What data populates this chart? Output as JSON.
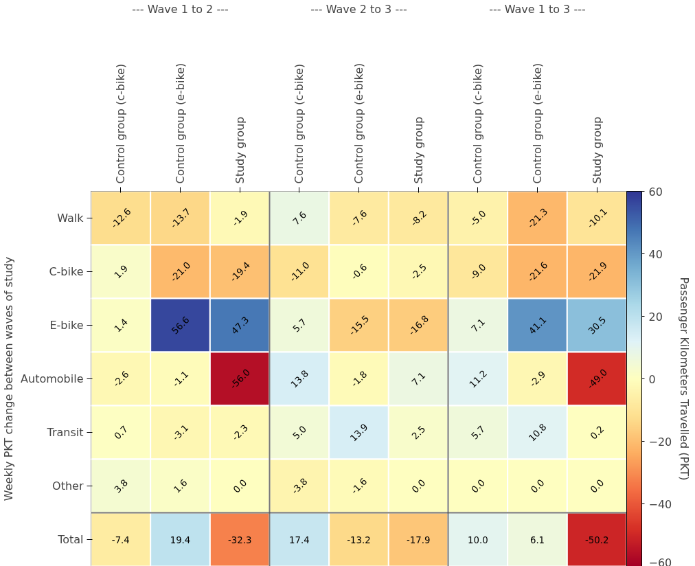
{
  "chart_data": {
    "type": "heatmap",
    "ylabel": "Weekly PKT change between waves of study",
    "clabel": "Passenger Kilometers Travelled (PKT)",
    "annotations": [
      "--- Wave 1 to 2 ---",
      "--- Wave 2 to 3 ---",
      "--- Wave 1 to 3 ---"
    ],
    "categories": [
      "Control group (c-bike)",
      "Control group (e-bike)",
      "Study group",
      "Control group (c-bike)",
      "Control group (e-bike)",
      "Study group",
      "Control group (c-bike)",
      "Control group (e-bike)",
      "Study group"
    ],
    "y_categories": [
      "Walk",
      "C-bike",
      "E-bike",
      "Automobile",
      "Transit",
      "Other",
      "Total"
    ],
    "cells": [
      [
        -12.6,
        -13.7,
        -1.9,
        7.6,
        -7.6,
        -8.2,
        -5.0,
        -21.3,
        -10.1
      ],
      [
        1.9,
        -21.0,
        -19.4,
        -11.0,
        -0.6,
        -2.5,
        -9.0,
        -21.6,
        -21.9
      ],
      [
        1.4,
        56.6,
        47.3,
        5.7,
        -15.5,
        -16.8,
        7.1,
        41.1,
        30.5
      ],
      [
        -2.6,
        -1.1,
        -56.0,
        13.8,
        -1.8,
        7.1,
        11.2,
        -2.9,
        -49.0
      ],
      [
        0.7,
        -3.1,
        -2.3,
        5.0,
        13.9,
        2.5,
        5.7,
        10.8,
        0.2
      ],
      [
        3.8,
        1.6,
        0.0,
        -3.8,
        -1.6,
        0.0,
        0.0,
        0.0,
        0.0
      ],
      [
        -7.4,
        19.4,
        -32.3,
        17.4,
        -13.2,
        -17.9,
        10.0,
        6.1,
        -50.2
      ]
    ],
    "cell_labels": [
      [
        "-12.6",
        "-13.7",
        "-1.9",
        "7.6",
        "-7.6",
        "-8.2",
        "-5.0",
        "-21.3",
        "-10.1"
      ],
      [
        "1.9",
        "-21.0",
        "-19.4",
        "-11.0",
        "-0.6",
        "-2.5",
        "-9.0",
        "-21.6",
        "-21.9"
      ],
      [
        "1.4",
        "56.6",
        "47.3",
        "5.7",
        "-15.5",
        "-16.8",
        "7.1",
        "41.1",
        "30.5"
      ],
      [
        "-2.6",
        "-1.1",
        "-56.0",
        "13.8",
        "-1.8",
        "7.1",
        "11.2",
        "-2.9",
        "-49.0"
      ],
      [
        "0.7",
        "-3.1",
        "-2.3",
        "5.0",
        "13.9",
        "2.5",
        "5.7",
        "10.8",
        "0.2"
      ],
      [
        "3.8",
        "1.6",
        "0.0",
        "-3.8",
        "-1.6",
        "0.0",
        "0.0",
        "0.0",
        "0.0"
      ],
      [
        "-7.4",
        "19.4",
        "-32.3",
        "17.4",
        "-13.2",
        "-17.9",
        "10.0",
        "6.1",
        "-50.2"
      ]
    ],
    "clim": [
      -60,
      60
    ],
    "cticks": [
      {
        "value": -60,
        "label": "−60"
      },
      {
        "value": -40,
        "label": "−40"
      },
      {
        "value": -20,
        "label": "−20"
      },
      0,
      20,
      40,
      60
    ]
  }
}
